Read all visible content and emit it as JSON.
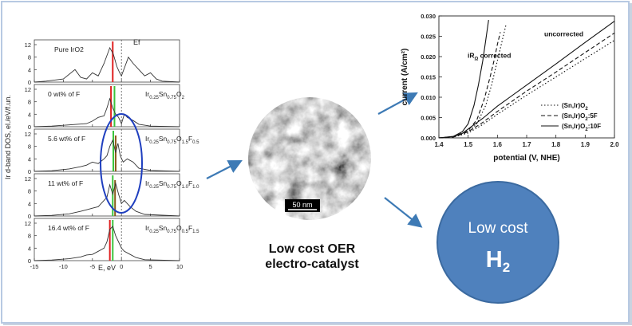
{
  "dos": {
    "ylabel": "Ir d-band DOS,  el./eV/f.un.",
    "xlabel": "E, eV",
    "ef_label": "Ef",
    "xlim": [
      -15,
      10
    ],
    "ylim": [
      0,
      12
    ],
    "xticks": [
      "-15",
      "-10",
      "-5",
      "0",
      "5",
      "10"
    ],
    "yticks": [
      "0",
      "4",
      "8",
      "12"
    ],
    "panels": [
      {
        "label": "Pure IrO2",
        "formula": ""
      },
      {
        "label": "0 wt% of F",
        "formula": "Ir0.25Sn0.75O2"
      },
      {
        "label": "5.6 wt% of F",
        "formula": "Ir0.25Sn0.75O1.5F0.5"
      },
      {
        "label": "11 wt% of F",
        "formula": "Ir0.25Sn0.75O1.0F1.0"
      },
      {
        "label": "16.4 wt% of F",
        "formula": "Ir0.25Sn0.75O0.5F1.5"
      }
    ],
    "line_color": "#333333",
    "marker_red": "#e02020",
    "marker_green": "#3cc43c",
    "marker_brown": "#8a5a1a",
    "ellipse_color": "#1f3fbf"
  },
  "tem": {
    "scale_label": "50 nm"
  },
  "caption": {
    "line1": "Low cost OER",
    "line2": "electro-catalyst"
  },
  "arrow_color": "#3d7ab5",
  "h2_circle": {
    "line1": "Low cost",
    "h2_main": "H",
    "h2_sub": "2",
    "fill": "#4f81bd"
  },
  "chart_data": {
    "type": "line",
    "xlabel": "potential (V, NHE)",
    "ylabel": "current (A/cm²)",
    "xlim": [
      1.4,
      2.0
    ],
    "ylim": [
      0,
      0.03
    ],
    "xticks": [
      "1.4",
      "1.5",
      "1.6",
      "1.7",
      "1.8",
      "1.9",
      "2.0"
    ],
    "yticks": [
      "0.000",
      "0.005",
      "0.010",
      "0.015",
      "0.020",
      "0.025",
      "0.030"
    ],
    "annotations": [
      {
        "text": "iRΩ corrected",
        "x": 1.52,
        "y": 0.015
      },
      {
        "text": "uncorrected",
        "x": 1.82,
        "y": 0.0195
      }
    ],
    "legend_position": "bottom-right",
    "series": [
      {
        "name": "(Sn,Ir)O2",
        "style": "dotted",
        "group": "corrected",
        "x": [
          1.4,
          1.45,
          1.5,
          1.53,
          1.56,
          1.58,
          1.6,
          1.615,
          1.63
        ],
        "y": [
          0,
          0.0003,
          0.0015,
          0.0035,
          0.008,
          0.013,
          0.019,
          0.0235,
          0.028
        ]
      },
      {
        "name": "(Sn,Ir)O2:5F",
        "style": "dashed",
        "group": "corrected",
        "x": [
          1.4,
          1.45,
          1.5,
          1.53,
          1.555,
          1.575,
          1.59,
          1.6,
          1.61
        ],
        "y": [
          0,
          0.0003,
          0.0018,
          0.0045,
          0.0095,
          0.015,
          0.0195,
          0.023,
          0.026
        ]
      },
      {
        "name": "(Sn,Ir)O2:10F",
        "style": "solid",
        "group": "corrected",
        "x": [
          1.4,
          1.45,
          1.48,
          1.5,
          1.52,
          1.535,
          1.55,
          1.56,
          1.57
        ],
        "y": [
          0,
          0.0004,
          0.0015,
          0.0035,
          0.008,
          0.013,
          0.019,
          0.024,
          0.029
        ]
      },
      {
        "name": "(Sn,Ir)O2",
        "style": "dotted",
        "group": "uncorrected",
        "x": [
          1.4,
          1.45,
          1.5,
          1.55,
          1.6,
          1.7,
          1.8,
          1.9,
          2.0
        ],
        "y": [
          0,
          0.0002,
          0.0012,
          0.0033,
          0.0058,
          0.0105,
          0.015,
          0.0195,
          0.024
        ]
      },
      {
        "name": "(Sn,Ir)O2:5F",
        "style": "dashed",
        "group": "uncorrected",
        "x": [
          1.4,
          1.45,
          1.5,
          1.55,
          1.6,
          1.7,
          1.8,
          1.9,
          2.0
        ],
        "y": [
          0,
          0.0002,
          0.0015,
          0.0038,
          0.0065,
          0.0115,
          0.0162,
          0.021,
          0.0258
        ]
      },
      {
        "name": "(Sn,Ir)O2:10F",
        "style": "solid",
        "group": "uncorrected",
        "x": [
          1.4,
          1.45,
          1.48,
          1.5,
          1.55,
          1.6,
          1.7,
          1.8,
          1.9,
          2.0
        ],
        "y": [
          0,
          0.0003,
          0.0011,
          0.0022,
          0.0048,
          0.0078,
          0.013,
          0.0182,
          0.0235,
          0.0287
        ]
      }
    ]
  }
}
